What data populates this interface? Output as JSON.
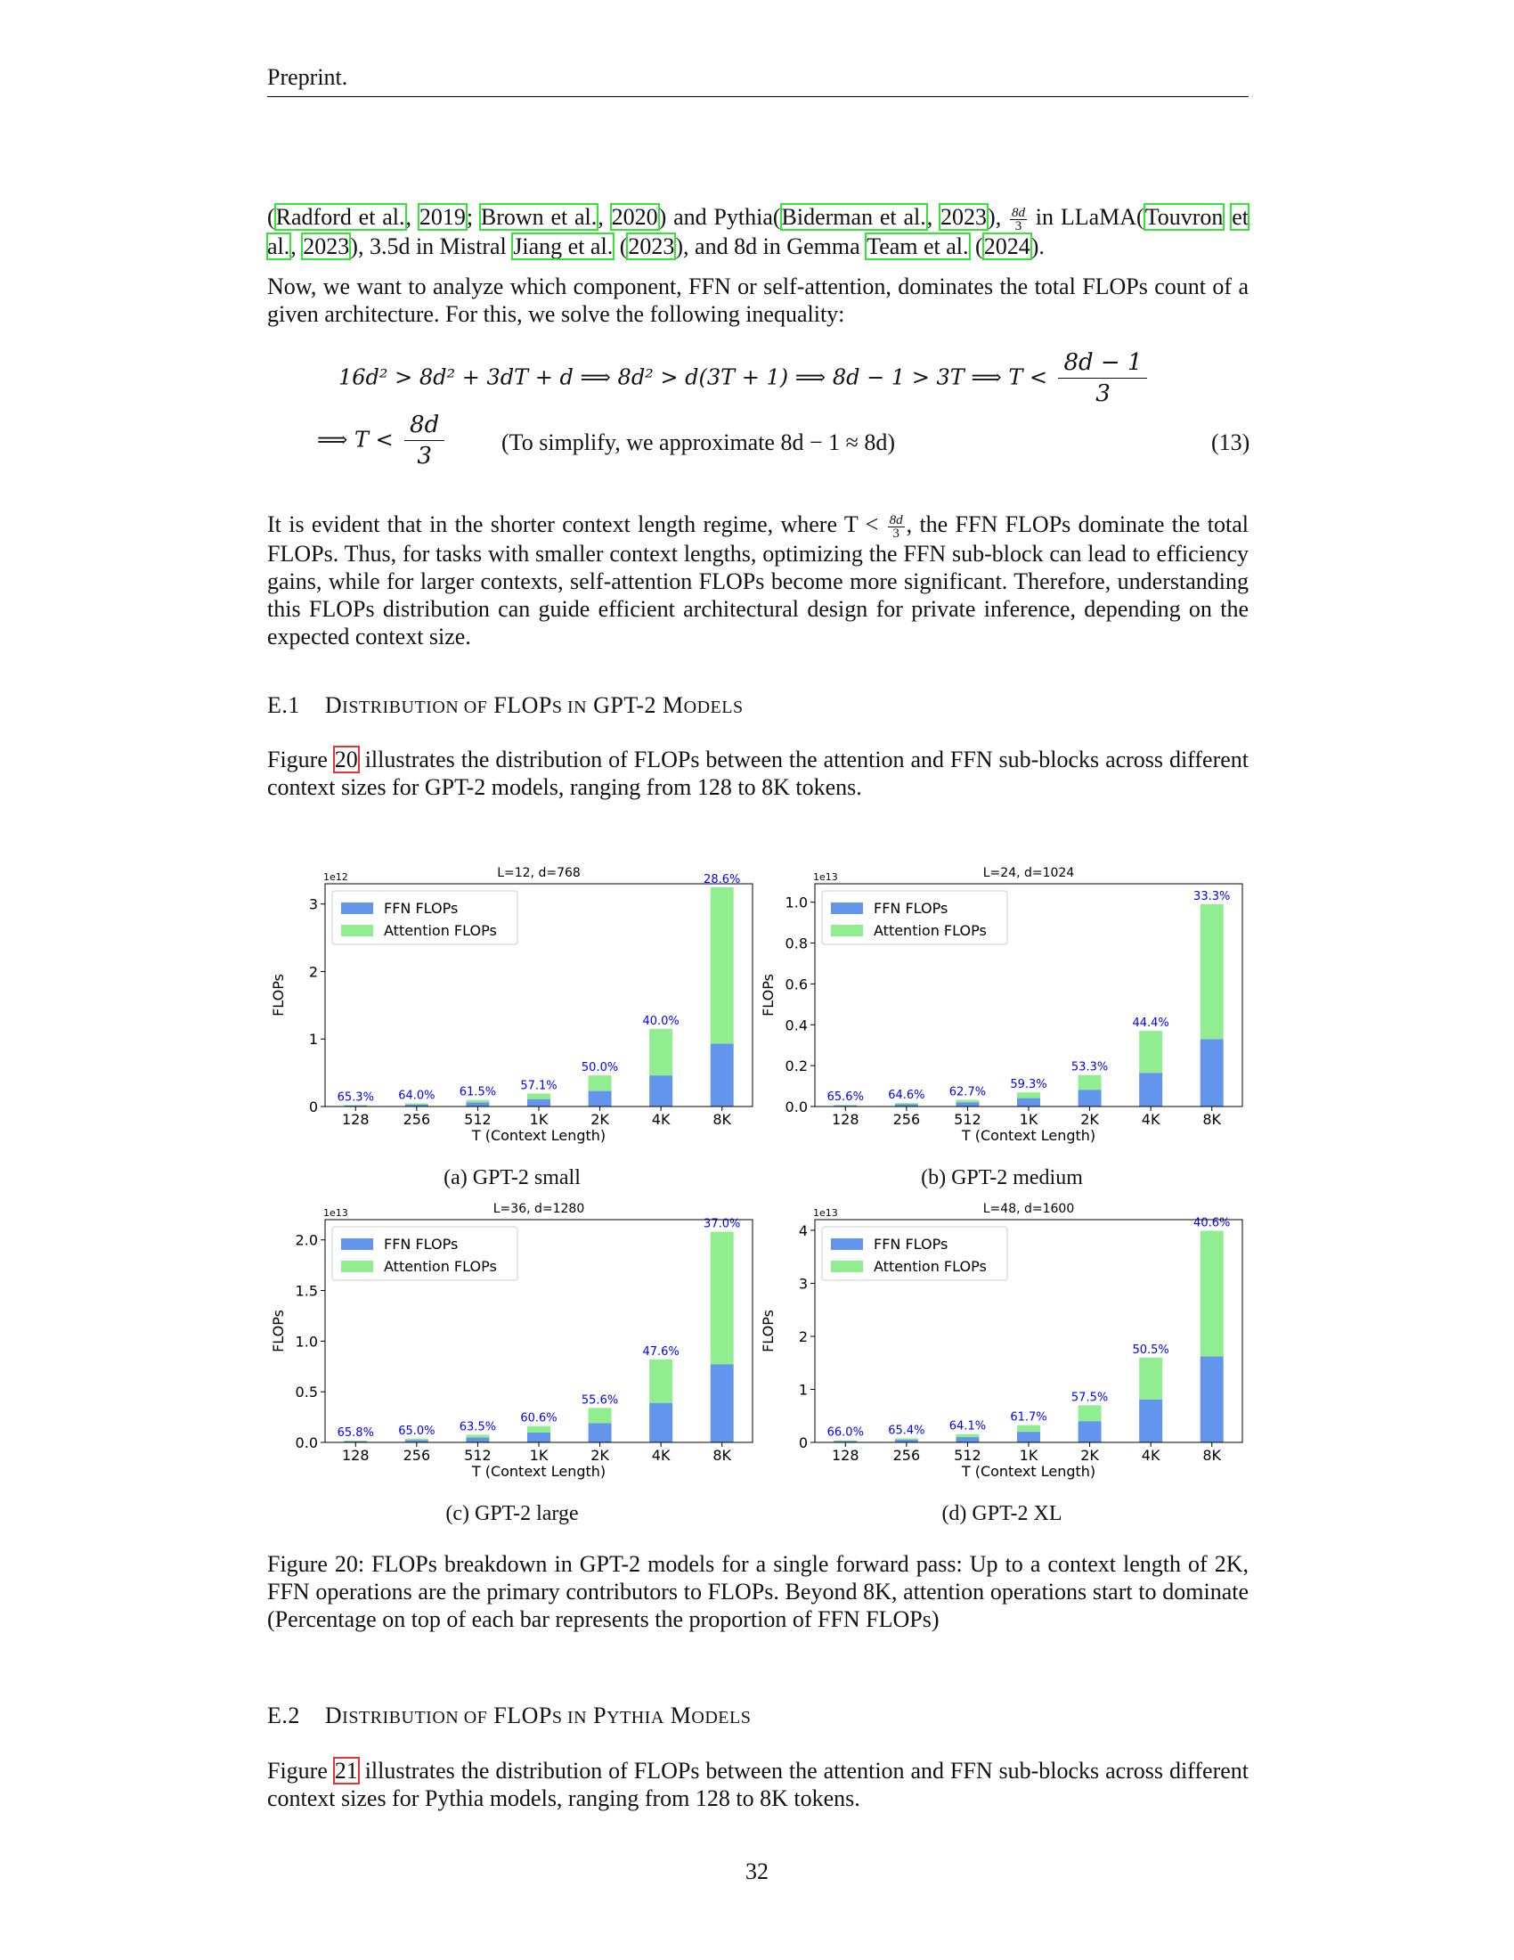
{
  "header": {
    "text": "Preprint."
  },
  "intro": {
    "c1": "Radford et al.",
    "c1y": "2019",
    "c2": "Brown et al.",
    "c2y": "2020",
    "mid1": " and Pythia",
    "c3": "Biderman et al.",
    "c3y": "2023",
    "frac_num": "8d",
    "frac_den": "3",
    "mid2": " in LLaMA",
    "c4a": "Touvron",
    "c4b": "et al.",
    "c4y": "2023",
    "mid3": ", 3.5d in Mistral ",
    "c5": "Jiang et al.",
    "c5y": "2023",
    "mid4": ", and 8d in Gemma ",
    "c6": "Team et al.",
    "c6y": "2024"
  },
  "para_analyze": "Now, we want to analyze which component, FFN or self-attention, dominates the total FLOPs count of a given architecture. For this, we solve the following inequality:",
  "equation": {
    "line1": "16d² > 8d² + 3dT + d ⟹ 8d² > d(3T + 1) ⟹ 8d − 1 > 3T ⟹ T <",
    "line1_num": "8d − 1",
    "line1_den": "3",
    "line2_prefix": "⟹ T <",
    "line2_num": "8d",
    "line2_den": "3",
    "note": "(To simplify, we approximate 8d − 1 ≈ 8d)",
    "number": "(13)"
  },
  "para_evident": {
    "a": "It is evident that in the shorter context length regime, where T <",
    "b": ", the FFN FLOPs dominate the total FLOPs. Thus, for tasks with smaller context lengths, optimizing the FFN sub-block can lead to efficiency gains, while for larger contexts, self-attention FLOPs become more significant. Therefore, understanding this FLOPs distribution can guide efficient architectural design for private inference, depending on the expected context size."
  },
  "section1": {
    "num": "E.1",
    "title_a": "D",
    "title_b": "ISTRIBUTION OF",
    "title_c": " FLOP",
    "title_d": "S IN",
    "title_e": " GPT-2 M",
    "title_f": "ODELS"
  },
  "para_fig20": {
    "a": "Figure ",
    "ref": "20",
    "b": " illustrates the distribution of FLOPs between the attention and FFN sub-blocks across different context sizes for GPT-2 models, ranging from 128 to 8K tokens."
  },
  "legend": {
    "ffn": "FFN FLOPs",
    "attn": "Attention FLOPs"
  },
  "colors": {
    "ffn": "#6495ed",
    "attn": "#90ee90",
    "pct": "#0000ff"
  },
  "chart_data": [
    {
      "type": "bar",
      "title": "L=12, d=768",
      "subcaption": "(a) GPT-2 small",
      "xlabel": "T (Context Length)",
      "ylabel": "FLOPs",
      "exponent": "1e12",
      "categories": [
        "128",
        "256",
        "512",
        "1K",
        "2K",
        "4K",
        "8K"
      ],
      "ylim": [
        0,
        3.3
      ],
      "yticks": [
        0,
        1,
        2,
        3
      ],
      "ytick_labels": [
        "0",
        "1",
        "2",
        "3"
      ],
      "series": [
        {
          "name": "FFN FLOPs",
          "values": [
            0.015,
            0.03,
            0.06,
            0.11,
            0.23,
            0.46,
            0.93
          ]
        },
        {
          "name": "Attention FLOPs",
          "values": [
            0.008,
            0.017,
            0.037,
            0.083,
            0.23,
            0.69,
            2.32
          ]
        }
      ],
      "labels": [
        "65.3%",
        "64.0%",
        "61.5%",
        "57.1%",
        "50.0%",
        "40.0%",
        "28.6%"
      ],
      "legend_position": "upper-left"
    },
    {
      "type": "bar",
      "title": "L=24, d=1024",
      "subcaption": "(b) GPT-2 medium",
      "xlabel": "T (Context Length)",
      "ylabel": "FLOPs",
      "exponent": "1e13",
      "categories": [
        "128",
        "256",
        "512",
        "1K",
        "2K",
        "4K",
        "8K"
      ],
      "ylim": [
        0,
        1.09
      ],
      "yticks": [
        0,
        0.2,
        0.4,
        0.6,
        0.8,
        1.0
      ],
      "ytick_labels": [
        "0.0",
        "0.2",
        "0.4",
        "0.6",
        "0.8",
        "1.0"
      ],
      "series": [
        {
          "name": "FFN FLOPs",
          "values": [
            0.005,
            0.011,
            0.021,
            0.041,
            0.082,
            0.165,
            0.33
          ]
        },
        {
          "name": "Attention FLOPs",
          "values": [
            0.003,
            0.006,
            0.012,
            0.028,
            0.072,
            0.205,
            0.66
          ]
        }
      ],
      "labels": [
        "65.6%",
        "64.6%",
        "62.7%",
        "59.3%",
        "53.3%",
        "44.4%",
        "33.3%"
      ],
      "legend_position": "upper-left"
    },
    {
      "type": "bar",
      "title": "L=36, d=1280",
      "subcaption": "(c) GPT-2 large",
      "xlabel": "T (Context Length)",
      "ylabel": "FLOPs",
      "exponent": "1e13",
      "categories": [
        "128",
        "256",
        "512",
        "1K",
        "2K",
        "4K",
        "8K"
      ],
      "ylim": [
        0,
        2.2
      ],
      "yticks": [
        0,
        0.5,
        1.0,
        1.5,
        2.0
      ],
      "ytick_labels": [
        "0.0",
        "0.5",
        "1.0",
        "1.5",
        "2.0"
      ],
      "series": [
        {
          "name": "FFN FLOPs",
          "values": [
            0.012,
            0.024,
            0.048,
            0.097,
            0.19,
            0.39,
            0.77
          ]
        },
        {
          "name": "Attention FLOPs",
          "values": [
            0.006,
            0.013,
            0.028,
            0.064,
            0.15,
            0.43,
            1.31
          ]
        }
      ],
      "labels": [
        "65.8%",
        "65.0%",
        "63.5%",
        "60.6%",
        "55.6%",
        "47.6%",
        "37.0%"
      ],
      "legend_position": "upper-left"
    },
    {
      "type": "bar",
      "title": "L=48, d=1600",
      "subcaption": "(d) GPT-2 XL",
      "xlabel": "T (Context Length)",
      "ylabel": "FLOPs",
      "exponent": "1e13",
      "categories": [
        "128",
        "256",
        "512",
        "1K",
        "2K",
        "4K",
        "8K"
      ],
      "ylim": [
        0,
        4.2
      ],
      "yticks": [
        0,
        1,
        2,
        3,
        4
      ],
      "ytick_labels": [
        "0",
        "1",
        "2",
        "3",
        "4"
      ],
      "series": [
        {
          "name": "FFN FLOPs",
          "values": [
            0.025,
            0.05,
            0.1,
            0.2,
            0.4,
            0.81,
            1.62
          ]
        },
        {
          "name": "Attention FLOPs",
          "values": [
            0.013,
            0.026,
            0.056,
            0.124,
            0.3,
            0.79,
            2.37
          ]
        }
      ],
      "labels": [
        "66.0%",
        "65.4%",
        "64.1%",
        "61.7%",
        "57.5%",
        "50.5%",
        "40.6%"
      ],
      "legend_position": "upper-left"
    }
  ],
  "figure_caption": "Figure 20: FLOPs breakdown in GPT-2 models for a single forward pass: Up to a context length of 2K, FFN operations are the primary contributors to FLOPs. Beyond 8K, attention operations start to dominate (Percentage on top of each bar represents the proportion of FFN FLOPs)",
  "section2": {
    "num": "E.2",
    "title_a": "D",
    "title_b": "ISTRIBUTION OF",
    "title_c": " FLOP",
    "title_d": "S IN",
    "title_e": " P",
    "title_f": "YTHIA",
    "title_g": " M",
    "title_h": "ODELS"
  },
  "para_fig21": {
    "a": "Figure ",
    "ref": "21",
    "b": " illustrates the distribution of FLOPs between the attention and FFN sub-blocks across different context sizes for Pythia models, ranging from 128 to 8K tokens."
  },
  "page_number": "32"
}
